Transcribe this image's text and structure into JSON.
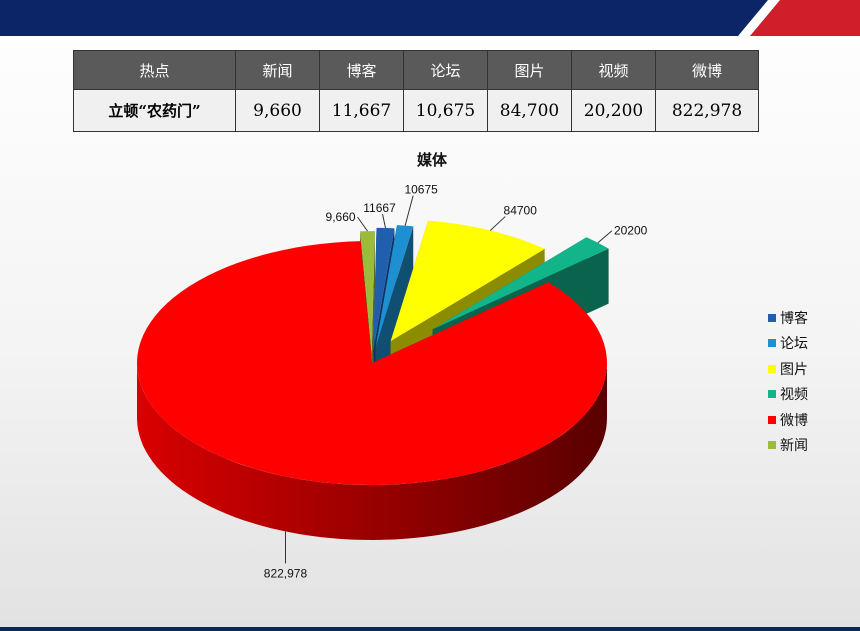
{
  "table": {
    "headers": [
      "热点",
      "新闻",
      "博客",
      "论坛",
      "图片",
      "视频",
      "微博"
    ],
    "row_label": "立顿“农药门”",
    "values": [
      "9,660",
      "11,667",
      "10,675",
      "84,700",
      "20,200",
      "822,978"
    ]
  },
  "chart_data": {
    "type": "pie",
    "title": "媒体",
    "legend_placement": "right",
    "slices": [
      {
        "name": "新闻",
        "value": 9660,
        "label": "9,660",
        "color": "#9bbb3b"
      },
      {
        "name": "博客",
        "value": 11667,
        "label": "11667",
        "color": "#1f5fae"
      },
      {
        "name": "论坛",
        "value": 10675,
        "label": "10675",
        "color": "#1e8fd0"
      },
      {
        "name": "图片",
        "value": 84700,
        "label": "84700",
        "color": "#ffff00"
      },
      {
        "name": "视频",
        "value": 20200,
        "label": "20200",
        "color": "#12b48a"
      },
      {
        "name": "微博",
        "value": 822978,
        "label": "822,978",
        "color": "#ff0000"
      }
    ],
    "legend": [
      "博客",
      "论坛",
      "图片",
      "视频",
      "微博",
      "新闻"
    ]
  }
}
